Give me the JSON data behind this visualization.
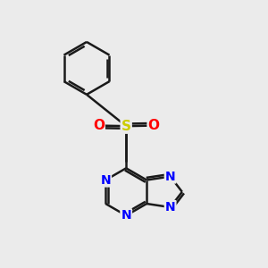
{
  "background_color": "#ebebeb",
  "bond_color": "#1a1a1a",
  "N_color": "#0000ff",
  "S_color": "#cccc00",
  "O_color": "#ff0000",
  "bond_width": 1.8,
  "figsize": [
    3.0,
    3.0
  ],
  "dpi": 100,
  "xlim": [
    0,
    10
  ],
  "ylim": [
    0,
    10
  ]
}
